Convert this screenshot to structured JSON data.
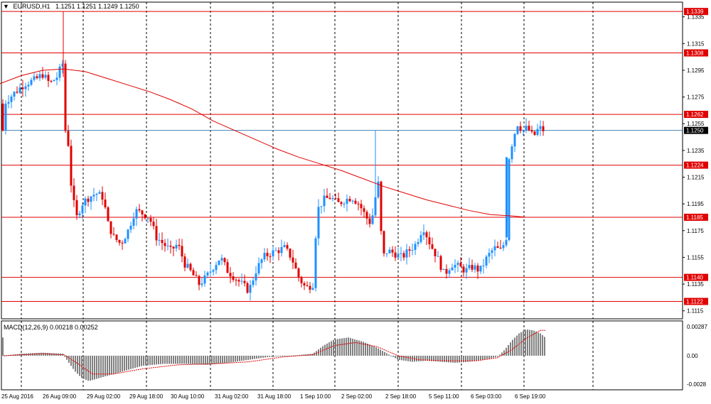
{
  "header": {
    "symbol_title": "EURUSD,H1",
    "ohlc": "1.1251 1.1251 1.1249 1.1250",
    "dropdown_icon": "triangle-down-icon"
  },
  "price_axis": {
    "ticks": [
      "1.1335",
      "1.1315",
      "1.1295",
      "1.1275",
      "1.1255",
      "1.1235",
      "1.1215",
      "1.1195",
      "1.1175",
      "1.1155",
      "1.1135",
      "1.1115"
    ],
    "min": 1.1109,
    "max": 1.1346
  },
  "levels": [
    {
      "label": "1.1339",
      "value": 1.1339
    },
    {
      "label": "1.1308",
      "value": 1.1308
    },
    {
      "label": "1.1262",
      "value": 1.1262
    },
    {
      "label": "1.1224",
      "value": 1.1224
    },
    {
      "label": "1.1185",
      "value": 1.1185
    },
    {
      "label": "1.1140",
      "value": 1.114
    },
    {
      "label": "1.1122",
      "value": 1.1122
    }
  ],
  "current_price": {
    "label": "1.1250",
    "value": 1.125
  },
  "time_axis": [
    "25 Aug 2016",
    "26 Aug 09:00",
    "29 Aug 02:00",
    "29 Aug 18:00",
    "30 Aug 10:00",
    "31 Aug 02:00",
    "31 Aug 18:00",
    "1 Sep 10:00",
    "2 Sep 02:00",
    "2 Sep 18:00",
    "5 Sep 11:00",
    "6 Sep 03:00",
    "6 Sep 19:00"
  ],
  "macd": {
    "title": "MACD(12,26,9) 0.00218 0.00252",
    "ticks": [
      "0.00287",
      "0.00",
      "-0.0028"
    ],
    "max": 0.00287,
    "min": -0.0028
  },
  "colors": {
    "up": "#1e90ff",
    "down": "#e00000",
    "level": "#e00000",
    "ma": "#e00000",
    "current": "#4682b4",
    "macd_hist": "#808080",
    "signal": "#e00000",
    "grid": "#000000"
  },
  "chart_data": {
    "type": "candlestick",
    "moving_average": [
      [
        0,
        1.1285
      ],
      [
        30,
        1.1291
      ],
      [
        60,
        1.1295
      ],
      [
        90,
        1.1296
      ],
      [
        120,
        1.1294
      ],
      [
        150,
        1.1289
      ],
      [
        180,
        1.1284
      ],
      [
        210,
        1.1279
      ],
      [
        240,
        1.1273
      ],
      [
        270,
        1.1266
      ],
      [
        300,
        1.1257
      ],
      [
        330,
        1.125
      ],
      [
        360,
        1.1243
      ],
      [
        390,
        1.1236
      ],
      [
        420,
        1.123
      ],
      [
        450,
        1.1225
      ],
      [
        480,
        1.122
      ],
      [
        510,
        1.1214
      ],
      [
        540,
        1.1208
      ],
      [
        570,
        1.1203
      ],
      [
        600,
        1.1198
      ],
      [
        630,
        1.1194
      ],
      [
        660,
        1.119
      ],
      [
        690,
        1.1187
      ],
      [
        720,
        1.1186
      ],
      [
        740,
        1.1185
      ],
      [
        760,
        1.1185
      ]
    ],
    "candles_close_path": [
      [
        5,
        1.127
      ],
      [
        20,
        1.1278
      ],
      [
        35,
        1.1285
      ],
      [
        50,
        1.1288
      ],
      [
        60,
        1.1292
      ],
      [
        70,
        1.1285
      ],
      [
        80,
        1.129
      ],
      [
        88,
        1.13
      ],
      [
        92,
        1.125
      ],
      [
        96,
        1.124
      ],
      [
        100,
        1.121
      ],
      [
        104,
        1.1195
      ],
      [
        108,
        1.1185
      ],
      [
        115,
        1.1195
      ],
      [
        125,
        1.12
      ],
      [
        135,
        1.1203
      ],
      [
        145,
        1.12
      ],
      [
        152,
        1.118
      ],
      [
        160,
        1.117
      ],
      [
        170,
        1.1165
      ],
      [
        180,
        1.1175
      ],
      [
        190,
        1.119
      ],
      [
        200,
        1.1188
      ],
      [
        210,
        1.1185
      ],
      [
        220,
        1.117
      ],
      [
        230,
        1.1165
      ],
      [
        240,
        1.116
      ],
      [
        250,
        1.1165
      ],
      [
        260,
        1.115
      ],
      [
        270,
        1.1143
      ],
      [
        280,
        1.1135
      ],
      [
        290,
        1.114
      ],
      [
        300,
        1.1148
      ],
      [
        310,
        1.1155
      ],
      [
        320,
        1.1145
      ],
      [
        330,
        1.114
      ],
      [
        340,
        1.1135
      ],
      [
        350,
        1.113
      ],
      [
        360,
        1.1145
      ],
      [
        370,
        1.1155
      ],
      [
        380,
        1.1158
      ],
      [
        390,
        1.116
      ],
      [
        400,
        1.1162
      ],
      [
        410,
        1.1155
      ],
      [
        420,
        1.114
      ],
      [
        430,
        1.1132
      ],
      [
        440,
        1.1135
      ],
      [
        446,
        1.119
      ],
      [
        455,
        1.1198
      ],
      [
        465,
        1.12
      ],
      [
        475,
        1.1195
      ],
      [
        485,
        1.1198
      ],
      [
        495,
        1.12
      ],
      [
        505,
        1.1195
      ],
      [
        515,
        1.1185
      ],
      [
        522,
        1.118
      ],
      [
        528,
        1.12
      ],
      [
        532,
        1.121
      ],
      [
        538,
        1.1155
      ],
      [
        545,
        1.116
      ],
      [
        555,
        1.1158
      ],
      [
        565,
        1.1155
      ],
      [
        575,
        1.116
      ],
      [
        585,
        1.1165
      ],
      [
        595,
        1.1178
      ],
      [
        605,
        1.1165
      ],
      [
        615,
        1.1155
      ],
      [
        625,
        1.1142
      ],
      [
        635,
        1.115
      ],
      [
        645,
        1.1148
      ],
      [
        655,
        1.1145
      ],
      [
        665,
        1.1148
      ],
      [
        675,
        1.1145
      ],
      [
        685,
        1.1155
      ],
      [
        695,
        1.1162
      ],
      [
        705,
        1.116
      ],
      [
        712,
        1.117
      ],
      [
        716,
        1.123
      ],
      [
        722,
        1.1245
      ],
      [
        728,
        1.1255
      ],
      [
        735,
        1.125
      ],
      [
        742,
        1.1252
      ],
      [
        750,
        1.1245
      ],
      [
        758,
        1.1252
      ],
      [
        765,
        1.125
      ]
    ],
    "macd_hist_path": [
      [
        5,
        0.0
      ],
      [
        30,
        0.0002
      ],
      [
        60,
        0.0003
      ],
      [
        88,
        0.0002
      ],
      [
        95,
        -0.0005
      ],
      [
        105,
        -0.0015
      ],
      [
        115,
        -0.0022
      ],
      [
        125,
        -0.0025
      ],
      [
        140,
        -0.0022
      ],
      [
        160,
        -0.0018
      ],
      [
        180,
        -0.0014
      ],
      [
        200,
        -0.001
      ],
      [
        230,
        -0.0008
      ],
      [
        260,
        -0.0008
      ],
      [
        290,
        -0.0009
      ],
      [
        320,
        -0.0007
      ],
      [
        350,
        -0.0004
      ],
      [
        380,
        -0.0001
      ],
      [
        410,
        0.0
      ],
      [
        440,
        0.0002
      ],
      [
        455,
        0.001
      ],
      [
        470,
        0.0016
      ],
      [
        490,
        0.0018
      ],
      [
        510,
        0.0014
      ],
      [
        530,
        0.0008
      ],
      [
        545,
        0.0002
      ],
      [
        560,
        -0.0004
      ],
      [
        580,
        -0.0006
      ],
      [
        600,
        -0.0005
      ],
      [
        620,
        -0.0006
      ],
      [
        640,
        -0.0007
      ],
      [
        660,
        -0.0006
      ],
      [
        680,
        -0.0004
      ],
      [
        700,
        -0.0001
      ],
      [
        710,
        0.0006
      ],
      [
        720,
        0.0015
      ],
      [
        730,
        0.0022
      ],
      [
        740,
        0.0026
      ],
      [
        750,
        0.0025
      ],
      [
        760,
        0.0022
      ],
      [
        767,
        0.0018
      ]
    ],
    "signal_path": [
      [
        5,
        0.0
      ],
      [
        60,
        0.0002
      ],
      [
        90,
        0.0001
      ],
      [
        110,
        -0.0008
      ],
      [
        130,
        -0.0018
      ],
      [
        160,
        -0.0018
      ],
      [
        200,
        -0.0013
      ],
      [
        250,
        -0.0009
      ],
      [
        300,
        -0.0008
      ],
      [
        350,
        -0.0006
      ],
      [
        400,
        -0.0001
      ],
      [
        440,
        0.0001
      ],
      [
        470,
        0.001
      ],
      [
        500,
        0.0013
      ],
      [
        530,
        0.0009
      ],
      [
        560,
        0.0
      ],
      [
        590,
        -0.0004
      ],
      [
        630,
        -0.0005
      ],
      [
        670,
        -0.0005
      ],
      [
        700,
        -0.0002
      ],
      [
        720,
        0.0006
      ],
      [
        740,
        0.0017
      ],
      [
        760,
        0.0025
      ],
      [
        767,
        0.0025
      ]
    ]
  }
}
